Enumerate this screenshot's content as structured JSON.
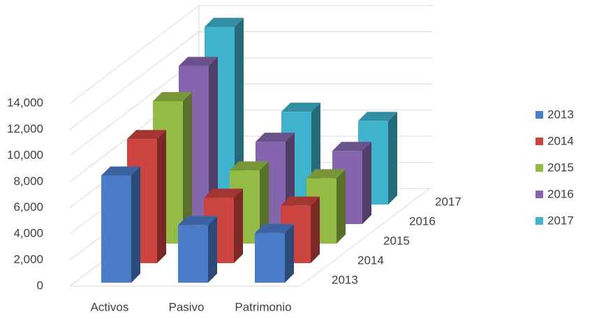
{
  "chart_data": {
    "type": "bar3d",
    "categories": [
      "Activos",
      "Pasivo",
      "Patrimonio"
    ],
    "series": [
      {
        "name": "2013",
        "color": "#4a7cc9",
        "values": [
          8200,
          4400,
          3800
        ]
      },
      {
        "name": "2014",
        "color": "#cc4440",
        "values": [
          9500,
          5000,
          4400
        ]
      },
      {
        "name": "2015",
        "color": "#94bb45",
        "values": [
          10900,
          5600,
          5000
        ]
      },
      {
        "name": "2016",
        "color": "#8566ae",
        "values": [
          12100,
          6300,
          5600
        ]
      },
      {
        "name": "2017",
        "color": "#3fb3cc",
        "values": [
          13600,
          7100,
          6400
        ]
      }
    ],
    "ylim": [
      0,
      14000
    ],
    "yticks": [
      0,
      {
        "value": 2000,
        "label": "2,000"
      },
      {
        "value": 4000,
        "label": "4,000"
      },
      {
        "value": 6000,
        "label": "6,000"
      },
      {
        "value": 8000,
        "label": "8,000"
      },
      {
        "value": 10000,
        "label": "10,000"
      },
      {
        "value": 12000,
        "label": "12,000"
      },
      {
        "value": 14000,
        "label": "14,000"
      }
    ],
    "grid": true,
    "legend": "right"
  }
}
